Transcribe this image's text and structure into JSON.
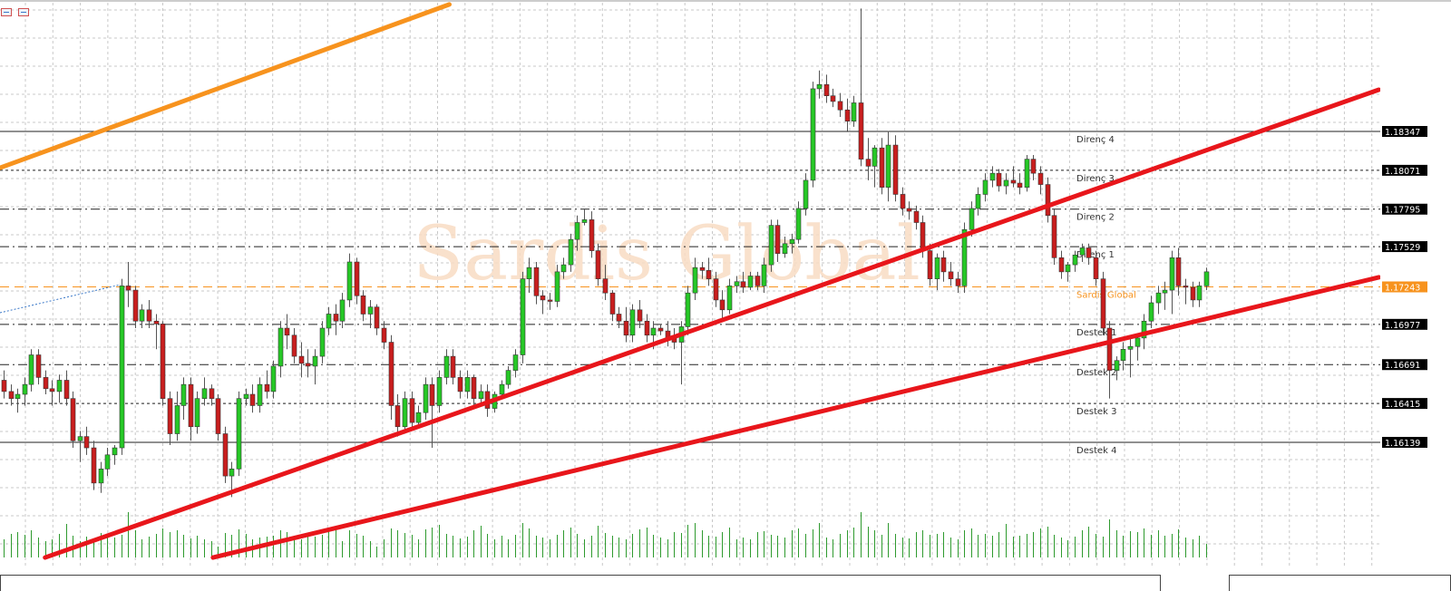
{
  "toolbar": {
    "icons": [
      "chart-list-icon",
      "chart-properties-icon"
    ]
  },
  "chart_data": {
    "type": "candlestick",
    "title": "",
    "watermark": "Sardis Global",
    "grid": true,
    "colors": {
      "bull": "#26c826",
      "bear": "#c81e1e",
      "wick": "#555555",
      "volume": "#2e9a2e",
      "support_resistance": "#222222",
      "pivot": "#f7931e",
      "trend_red": "#e8161b",
      "trend_orange": "#f7931e"
    },
    "candles": [
      [
        1.1658,
        1.1665,
        1.1645,
        1.165
      ],
      [
        1.165,
        1.1655,
        1.164,
        1.1645
      ],
      [
        1.1645,
        1.1652,
        1.1635,
        1.1648
      ],
      [
        1.1648,
        1.166,
        1.164,
        1.1655
      ],
      [
        1.1655,
        1.168,
        1.165,
        1.1676
      ],
      [
        1.1676,
        1.168,
        1.1655,
        1.166
      ],
      [
        1.166,
        1.1665,
        1.1648,
        1.1652
      ],
      [
        1.1652,
        1.1658,
        1.164,
        1.165
      ],
      [
        1.165,
        1.1662,
        1.1642,
        1.1658
      ],
      [
        1.1658,
        1.1665,
        1.164,
        1.1645
      ],
      [
        1.1645,
        1.165,
        1.161,
        1.1615
      ],
      [
        1.1615,
        1.1622,
        1.16,
        1.1618
      ],
      [
        1.1618,
        1.1625,
        1.1605,
        1.161
      ],
      [
        1.161,
        1.1615,
        1.158,
        1.1585
      ],
      [
        1.1585,
        1.16,
        1.1578,
        1.1595
      ],
      [
        1.1595,
        1.161,
        1.159,
        1.1605
      ],
      [
        1.1605,
        1.1612,
        1.1598,
        1.161
      ],
      [
        1.161,
        1.173,
        1.1605,
        1.1725
      ],
      [
        1.1725,
        1.1742,
        1.171,
        1.1722
      ],
      [
        1.1722,
        1.1725,
        1.1695,
        1.17
      ],
      [
        1.17,
        1.1712,
        1.1695,
        1.1708
      ],
      [
        1.1708,
        1.1715,
        1.1695,
        1.17
      ],
      [
        1.17,
        1.1705,
        1.168,
        1.1698
      ],
      [
        1.1698,
        1.17,
        1.164,
        1.1645
      ],
      [
        1.1645,
        1.165,
        1.1612,
        1.162
      ],
      [
        1.162,
        1.165,
        1.1615,
        1.164
      ],
      [
        1.164,
        1.166,
        1.163,
        1.1655
      ],
      [
        1.1655,
        1.166,
        1.1615,
        1.1625
      ],
      [
        1.1625,
        1.165,
        1.162,
        1.1645
      ],
      [
        1.1645,
        1.166,
        1.164,
        1.1652
      ],
      [
        1.1652,
        1.1655,
        1.164,
        1.1645
      ],
      [
        1.1645,
        1.1648,
        1.1615,
        1.162
      ],
      [
        1.162,
        1.1625,
        1.1585,
        1.159
      ],
      [
        1.159,
        1.16,
        1.1575,
        1.1595
      ],
      [
        1.1595,
        1.165,
        1.159,
        1.1645
      ],
      [
        1.1645,
        1.1652,
        1.164,
        1.1648
      ],
      [
        1.1648,
        1.1655,
        1.1635,
        1.164
      ],
      [
        1.164,
        1.166,
        1.1635,
        1.1655
      ],
      [
        1.1655,
        1.1665,
        1.1645,
        1.165
      ],
      [
        1.165,
        1.1672,
        1.1645,
        1.1668
      ],
      [
        1.1668,
        1.17,
        1.166,
        1.1695
      ],
      [
        1.1695,
        1.1705,
        1.168,
        1.169
      ],
      [
        1.169,
        1.1695,
        1.167,
        1.1675
      ],
      [
        1.1675,
        1.1685,
        1.166,
        1.167
      ],
      [
        1.167,
        1.168,
        1.166,
        1.1668
      ],
      [
        1.1668,
        1.168,
        1.1655,
        1.1675
      ],
      [
        1.1675,
        1.17,
        1.167,
        1.1695
      ],
      [
        1.1695,
        1.171,
        1.169,
        1.1705
      ],
      [
        1.1705,
        1.1712,
        1.169,
        1.17
      ],
      [
        1.17,
        1.172,
        1.1695,
        1.1715
      ],
      [
        1.1715,
        1.1748,
        1.171,
        1.1742
      ],
      [
        1.1742,
        1.1745,
        1.1712,
        1.1718
      ],
      [
        1.1718,
        1.1722,
        1.17,
        1.1705
      ],
      [
        1.1705,
        1.1715,
        1.1695,
        1.171
      ],
      [
        1.171,
        1.1712,
        1.169,
        1.1695
      ],
      [
        1.1695,
        1.17,
        1.168,
        1.1685
      ],
      [
        1.1685,
        1.169,
        1.163,
        1.164
      ],
      [
        1.164,
        1.1648,
        1.1618,
        1.1625
      ],
      [
        1.1625,
        1.165,
        1.162,
        1.1645
      ],
      [
        1.1645,
        1.165,
        1.1622,
        1.1628
      ],
      [
        1.1628,
        1.164,
        1.1625,
        1.1635
      ],
      [
        1.1635,
        1.166,
        1.163,
        1.1655
      ],
      [
        1.1655,
        1.166,
        1.161,
        1.164
      ],
      [
        1.164,
        1.1665,
        1.1635,
        1.166
      ],
      [
        1.166,
        1.168,
        1.1655,
        1.1675
      ],
      [
        1.1675,
        1.168,
        1.1655,
        1.166
      ],
      [
        1.166,
        1.1665,
        1.1645,
        1.165
      ],
      [
        1.165,
        1.1665,
        1.1645,
        1.166
      ],
      [
        1.166,
        1.1662,
        1.164,
        1.1645
      ],
      [
        1.1645,
        1.1655,
        1.164,
        1.165
      ],
      [
        1.165,
        1.1655,
        1.1632,
        1.1638
      ],
      [
        1.1638,
        1.165,
        1.1635,
        1.1648
      ],
      [
        1.1648,
        1.1658,
        1.1645,
        1.1655
      ],
      [
        1.1655,
        1.1668,
        1.1652,
        1.1665
      ],
      [
        1.1665,
        1.168,
        1.166,
        1.1676
      ],
      [
        1.1676,
        1.1735,
        1.167,
        1.173
      ],
      [
        1.173,
        1.1745,
        1.172,
        1.1738
      ],
      [
        1.1738,
        1.1742,
        1.1712,
        1.1718
      ],
      [
        1.1718,
        1.1722,
        1.1705,
        1.1715
      ],
      [
        1.1715,
        1.172,
        1.1708,
        1.1714
      ],
      [
        1.1714,
        1.174,
        1.171,
        1.1735
      ],
      [
        1.1735,
        1.1745,
        1.173,
        1.174
      ],
      [
        1.174,
        1.1762,
        1.1735,
        1.1758
      ],
      [
        1.1758,
        1.1775,
        1.175,
        1.177
      ],
      [
        1.177,
        1.178,
        1.1768,
        1.1772
      ],
      [
        1.1772,
        1.1778,
        1.1745,
        1.175
      ],
      [
        1.175,
        1.1755,
        1.1725,
        1.173
      ],
      [
        1.173,
        1.174,
        1.1715,
        1.172
      ],
      [
        1.172,
        1.1722,
        1.17,
        1.1705
      ],
      [
        1.1705,
        1.171,
        1.1695,
        1.17
      ],
      [
        1.17,
        1.171,
        1.1685,
        1.169
      ],
      [
        1.169,
        1.1712,
        1.1685,
        1.1708
      ],
      [
        1.1708,
        1.1715,
        1.1695,
        1.17
      ],
      [
        1.17,
        1.1705,
        1.1685,
        1.169
      ],
      [
        1.169,
        1.17,
        1.168,
        1.1695
      ],
      [
        1.1695,
        1.1698,
        1.169,
        1.1693
      ],
      [
        1.1693,
        1.17,
        1.1682,
        1.1688
      ],
      [
        1.1688,
        1.1695,
        1.168,
        1.1685
      ],
      [
        1.1685,
        1.17,
        1.1655,
        1.1696
      ],
      [
        1.1696,
        1.1725,
        1.169,
        1.172
      ],
      [
        1.172,
        1.1745,
        1.1715,
        1.1738
      ],
      [
        1.1738,
        1.1742,
        1.173,
        1.1736
      ],
      [
        1.1736,
        1.1745,
        1.1725,
        1.173
      ],
      [
        1.173,
        1.1735,
        1.171,
        1.1715
      ],
      [
        1.1715,
        1.1722,
        1.17,
        1.1708
      ],
      [
        1.1708,
        1.173,
        1.1705,
        1.1725
      ],
      [
        1.1725,
        1.1732,
        1.172,
        1.1728
      ],
      [
        1.1728,
        1.1735,
        1.172,
        1.1724
      ],
      [
        1.1724,
        1.1735,
        1.1722,
        1.1732
      ],
      [
        1.1732,
        1.1735,
        1.1722,
        1.1725
      ],
      [
        1.1725,
        1.1745,
        1.172,
        1.174
      ],
      [
        1.174,
        1.1772,
        1.1735,
        1.1768
      ],
      [
        1.1768,
        1.1772,
        1.1742,
        1.1748
      ],
      [
        1.1748,
        1.176,
        1.1745,
        1.1755
      ],
      [
        1.1755,
        1.1762,
        1.1748,
        1.1758
      ],
      [
        1.1758,
        1.1785,
        1.1755,
        1.178
      ],
      [
        1.178,
        1.1805,
        1.1775,
        1.18
      ],
      [
        1.18,
        1.187,
        1.1795,
        1.1865
      ],
      [
        1.1865,
        1.1878,
        1.1858,
        1.1868
      ],
      [
        1.1868,
        1.1875,
        1.1855,
        1.186
      ],
      [
        1.186,
        1.1865,
        1.1852,
        1.1856
      ],
      [
        1.1856,
        1.1862,
        1.1845,
        1.185
      ],
      [
        1.185,
        1.1858,
        1.1835,
        1.1842
      ],
      [
        1.1842,
        1.186,
        1.1838,
        1.1855
      ],
      [
        1.1855,
        1.1922,
        1.181,
        1.1815
      ],
      [
        1.1815,
        1.183,
        1.18,
        1.181
      ],
      [
        1.181,
        1.1825,
        1.1795,
        1.1823
      ],
      [
        1.1823,
        1.183,
        1.179,
        1.1795
      ],
      [
        1.1795,
        1.1835,
        1.1785,
        1.1825
      ],
      [
        1.1825,
        1.1832,
        1.1785,
        1.179
      ],
      [
        1.179,
        1.1795,
        1.1775,
        1.178
      ],
      [
        1.178,
        1.1785,
        1.1772,
        1.1778
      ],
      [
        1.1778,
        1.1782,
        1.1765,
        1.177
      ],
      [
        1.177,
        1.1775,
        1.1745,
        1.175
      ],
      [
        1.175,
        1.1755,
        1.1725,
        1.173
      ],
      [
        1.173,
        1.1748,
        1.1722,
        1.1745
      ],
      [
        1.1745,
        1.175,
        1.1728,
        1.1735
      ],
      [
        1.1735,
        1.1742,
        1.1725,
        1.173
      ],
      [
        1.173,
        1.1735,
        1.172,
        1.1725
      ],
      [
        1.1725,
        1.177,
        1.172,
        1.1765
      ],
      [
        1.1765,
        1.1785,
        1.176,
        1.178
      ],
      [
        1.178,
        1.1795,
        1.1775,
        1.179
      ],
      [
        1.179,
        1.1805,
        1.1785,
        1.18
      ],
      [
        1.18,
        1.181,
        1.1795,
        1.1805
      ],
      [
        1.1805,
        1.1808,
        1.1792,
        1.1796
      ],
      [
        1.1796,
        1.1805,
        1.179,
        1.18
      ],
      [
        1.18,
        1.181,
        1.1795,
        1.1798
      ],
      [
        1.1798,
        1.1805,
        1.179,
        1.1795
      ],
      [
        1.1795,
        1.1818,
        1.1792,
        1.1815
      ],
      [
        1.1815,
        1.1818,
        1.18,
        1.1805
      ],
      [
        1.1805,
        1.181,
        1.179,
        1.1797
      ],
      [
        1.1797,
        1.1802,
        1.177,
        1.1775
      ],
      [
        1.1775,
        1.178,
        1.174,
        1.1745
      ],
      [
        1.1745,
        1.175,
        1.173,
        1.1735
      ],
      [
        1.1735,
        1.1742,
        1.1728,
        1.174
      ],
      [
        1.174,
        1.175,
        1.1735,
        1.1747
      ],
      [
        1.1747,
        1.1755,
        1.1742,
        1.1752
      ],
      [
        1.1752,
        1.1755,
        1.174,
        1.1745
      ],
      [
        1.1745,
        1.175,
        1.1725,
        1.173
      ],
      [
        1.173,
        1.1735,
        1.169,
        1.1695
      ],
      [
        1.1695,
        1.17,
        1.1645,
        1.1665
      ],
      [
        1.1665,
        1.1675,
        1.1658,
        1.1672
      ],
      [
        1.1672,
        1.1685,
        1.1665,
        1.168
      ],
      [
        1.168,
        1.1688,
        1.166,
        1.1682
      ],
      [
        1.1682,
        1.169,
        1.1672,
        1.1688
      ],
      [
        1.1688,
        1.1705,
        1.168,
        1.17
      ],
      [
        1.17,
        1.1718,
        1.1695,
        1.1713
      ],
      [
        1.1713,
        1.1725,
        1.1705,
        1.172
      ],
      [
        1.172,
        1.1728,
        1.1708,
        1.1722
      ],
      [
        1.1722,
        1.175,
        1.1705,
        1.1745
      ],
      [
        1.1745,
        1.1752,
        1.1718,
        1.1725
      ],
      [
        1.1725,
        1.173,
        1.1712,
        1.1724
      ],
      [
        1.1724,
        1.1728,
        1.171,
        1.1715
      ],
      [
        1.1715,
        1.1728,
        1.171,
        1.1725
      ],
      [
        1.1725,
        1.1738,
        1.1722,
        1.1735
      ]
    ],
    "volume": [
      200,
      260,
      280,
      250,
      300,
      220,
      180,
      200,
      260,
      370,
      240,
      180,
      230,
      200,
      270,
      240,
      220,
      250,
      500,
      300,
      200,
      230,
      260,
      320,
      280,
      300,
      250,
      210,
      240,
      200,
      180,
      120,
      270,
      250,
      310,
      260,
      200,
      220,
      230,
      240,
      300,
      280,
      240,
      200,
      260,
      230,
      250,
      290,
      330,
      180,
      300,
      260,
      240,
      180,
      120,
      200,
      320,
      300,
      270,
      250,
      200,
      310,
      330,
      360,
      260,
      240,
      210,
      230,
      300,
      350,
      260,
      200,
      240,
      200,
      250,
      380,
      320,
      240,
      220,
      200,
      250,
      300,
      330,
      260,
      200,
      240,
      350,
      270,
      240,
      220,
      200,
      260,
      310,
      330,
      250,
      220,
      200,
      280,
      270,
      360,
      380,
      300,
      240,
      230,
      280,
      330,
      200,
      220,
      200,
      280,
      290,
      250,
      240,
      220,
      300,
      320,
      260,
      310,
      380,
      220,
      200,
      260,
      300,
      330,
      500,
      340,
      300,
      250,
      380,
      260,
      220,
      210,
      280,
      300,
      250,
      260,
      280,
      220,
      200,
      300,
      320,
      250,
      260,
      240,
      280,
      370,
      230,
      240,
      260,
      280,
      320,
      340,
      250,
      220,
      190,
      230,
      300,
      340,
      260,
      230,
      420,
      300,
      240,
      290,
      280,
      320,
      250,
      300,
      240,
      260,
      310,
      220,
      200,
      240,
      150
    ],
    "levels": [
      {
        "label": "Direnç 4",
        "price": 1.18347,
        "price_text": "1.18347",
        "style": "solid"
      },
      {
        "label": "Direnç 3",
        "price": 1.18071,
        "price_text": "1.18071",
        "style": "dotted"
      },
      {
        "label": "Direnç 2",
        "price": 1.17795,
        "price_text": "1.17795",
        "style": "dashdot"
      },
      {
        "label": "Direnç 1",
        "price": 1.17529,
        "price_text": "1.17529",
        "style": "dashdot"
      },
      {
        "label": "Sardis Global",
        "price": 1.17243,
        "price_text": "1.17243",
        "style": "pivot"
      },
      {
        "label": "Destek 1",
        "price": 1.16977,
        "price_text": "1.16977",
        "style": "dashdot"
      },
      {
        "label": "Destek 2",
        "price": 1.16691,
        "price_text": "1.16691",
        "style": "dashdot"
      },
      {
        "label": "Destek 3",
        "price": 1.16415,
        "price_text": "1.16415",
        "style": "dotted"
      },
      {
        "label": "Destek 4",
        "price": 1.16139,
        "price_text": "1.16139",
        "style": "solid"
      }
    ],
    "trendlines": [
      {
        "color": "#f7931e",
        "from": [
          -0.5,
          1.18089
        ],
        "to": [
          64.5,
          1.19249
        ]
      },
      {
        "color": "#e8161b",
        "from": [
          6.0,
          1.15321
        ],
        "to": [
          199.0,
          1.18643
        ]
      },
      {
        "color": "#e8161b",
        "from": [
          30.3,
          1.15321
        ],
        "to": [
          199.0,
          1.17311
        ]
      }
    ]
  }
}
